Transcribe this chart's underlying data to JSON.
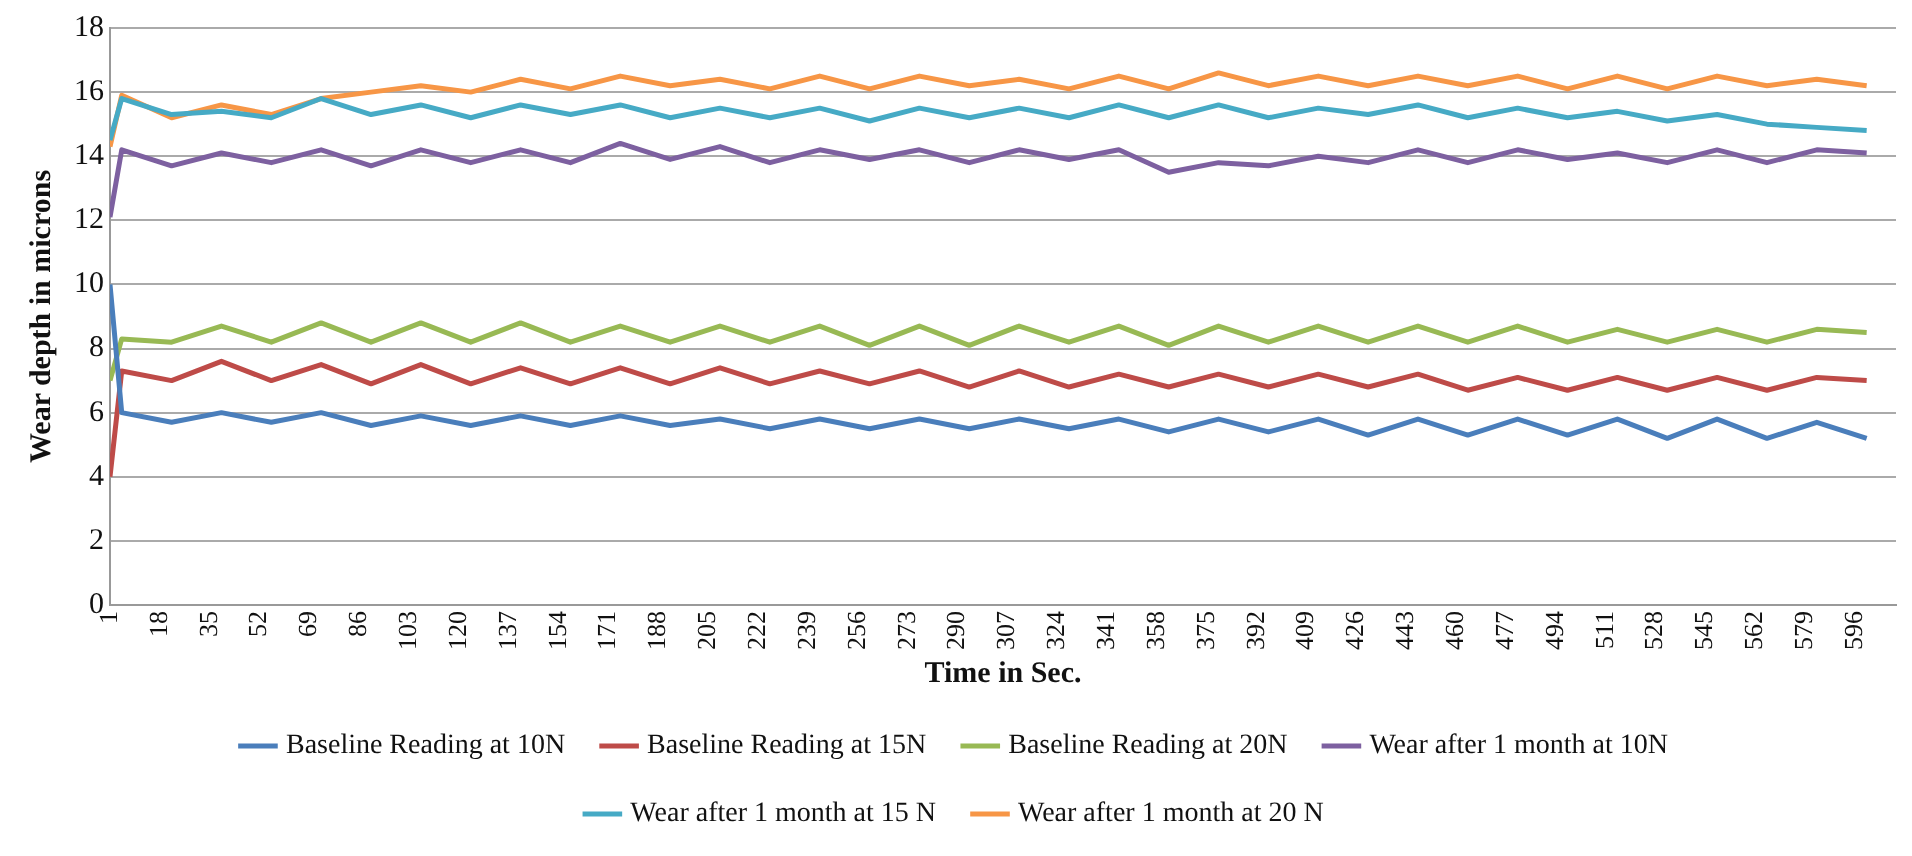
{
  "chart_data": {
    "type": "line",
    "xlabel": "Time in Sec.",
    "ylabel": "Wear depth in microns",
    "x": [
      1,
      5,
      22,
      39,
      56,
      73,
      90,
      107,
      124,
      141,
      158,
      175,
      192,
      209,
      226,
      243,
      260,
      277,
      294,
      311,
      328,
      345,
      362,
      379,
      396,
      413,
      430,
      447,
      464,
      481,
      498,
      515,
      532,
      549,
      566,
      583,
      600
    ],
    "series": [
      {
        "name": "Baseline Reading at 10N",
        "color": "#4a7ebb",
        "values": [
          10,
          6.0,
          5.7,
          6.0,
          5.7,
          6.0,
          5.6,
          5.9,
          5.6,
          5.9,
          5.6,
          5.9,
          5.6,
          5.8,
          5.5,
          5.8,
          5.5,
          5.8,
          5.5,
          5.8,
          5.5,
          5.8,
          5.4,
          5.8,
          5.4,
          5.8,
          5.3,
          5.8,
          5.3,
          5.8,
          5.3,
          5.8,
          5.2,
          5.8,
          5.2,
          5.7,
          5.2
        ]
      },
      {
        "name": "Baseline Reading at 15N",
        "color": "#be4b48",
        "values": [
          4,
          7.3,
          7.0,
          7.6,
          7.0,
          7.5,
          6.9,
          7.5,
          6.9,
          7.4,
          6.9,
          7.4,
          6.9,
          7.4,
          6.9,
          7.3,
          6.9,
          7.3,
          6.8,
          7.3,
          6.8,
          7.2,
          6.8,
          7.2,
          6.8,
          7.2,
          6.8,
          7.2,
          6.7,
          7.1,
          6.7,
          7.1,
          6.7,
          7.1,
          6.7,
          7.1,
          7.0
        ]
      },
      {
        "name": "Baseline Reading at 20N",
        "color": "#98b954",
        "values": [
          7.0,
          8.3,
          8.2,
          8.7,
          8.2,
          8.8,
          8.2,
          8.8,
          8.2,
          8.8,
          8.2,
          8.7,
          8.2,
          8.7,
          8.2,
          8.7,
          8.1,
          8.7,
          8.1,
          8.7,
          8.2,
          8.7,
          8.1,
          8.7,
          8.2,
          8.7,
          8.2,
          8.7,
          8.2,
          8.7,
          8.2,
          8.6,
          8.2,
          8.6,
          8.2,
          8.6,
          8.5
        ]
      },
      {
        "name": "Wear after 1 month at 10N",
        "color": "#7d60a0",
        "values": [
          12.1,
          14.2,
          13.7,
          14.1,
          13.8,
          14.2,
          13.7,
          14.2,
          13.8,
          14.2,
          13.8,
          14.4,
          13.9,
          14.3,
          13.8,
          14.2,
          13.9,
          14.2,
          13.8,
          14.2,
          13.9,
          14.2,
          13.5,
          13.8,
          13.7,
          14.0,
          13.8,
          14.2,
          13.8,
          14.2,
          13.9,
          14.1,
          13.8,
          14.2,
          13.8,
          14.2,
          14.1
        ]
      },
      {
        "name": "Wear after 1 month at 15 N",
        "color": "#46aac5",
        "values": [
          14.5,
          15.8,
          15.3,
          15.4,
          15.2,
          15.8,
          15.3,
          15.6,
          15.2,
          15.6,
          15.3,
          15.6,
          15.2,
          15.5,
          15.2,
          15.5,
          15.1,
          15.5,
          15.2,
          15.5,
          15.2,
          15.6,
          15.2,
          15.6,
          15.2,
          15.5,
          15.3,
          15.6,
          15.2,
          15.5,
          15.2,
          15.4,
          15.1,
          15.3,
          15.0,
          14.9,
          14.8
        ]
      },
      {
        "name": "Wear after 1 month at 20 N",
        "color": "#f79646",
        "values": [
          14.3,
          15.9,
          15.2,
          15.6,
          15.3,
          15.8,
          16.0,
          16.2,
          16.0,
          16.4,
          16.1,
          16.5,
          16.2,
          16.4,
          16.1,
          16.5,
          16.1,
          16.5,
          16.2,
          16.4,
          16.1,
          16.5,
          16.1,
          16.6,
          16.2,
          16.5,
          16.2,
          16.5,
          16.2,
          16.5,
          16.1,
          16.5,
          16.1,
          16.5,
          16.2,
          16.4,
          16.2
        ]
      }
    ],
    "xlim": [
      1,
      610
    ],
    "xticks": [
      1,
      18,
      35,
      52,
      69,
      86,
      103,
      120,
      137,
      154,
      171,
      188,
      205,
      222,
      239,
      256,
      273,
      290,
      307,
      324,
      341,
      358,
      375,
      392,
      409,
      426,
      443,
      460,
      477,
      494,
      511,
      528,
      545,
      562,
      579,
      596
    ],
    "ylim": [
      0,
      18
    ],
    "yticks": [
      0,
      2,
      4,
      6,
      8,
      10,
      12,
      14,
      16,
      18
    ],
    "grid": "y",
    "legend": "bottom",
    "marker": "none",
    "line_style": "solid"
  }
}
